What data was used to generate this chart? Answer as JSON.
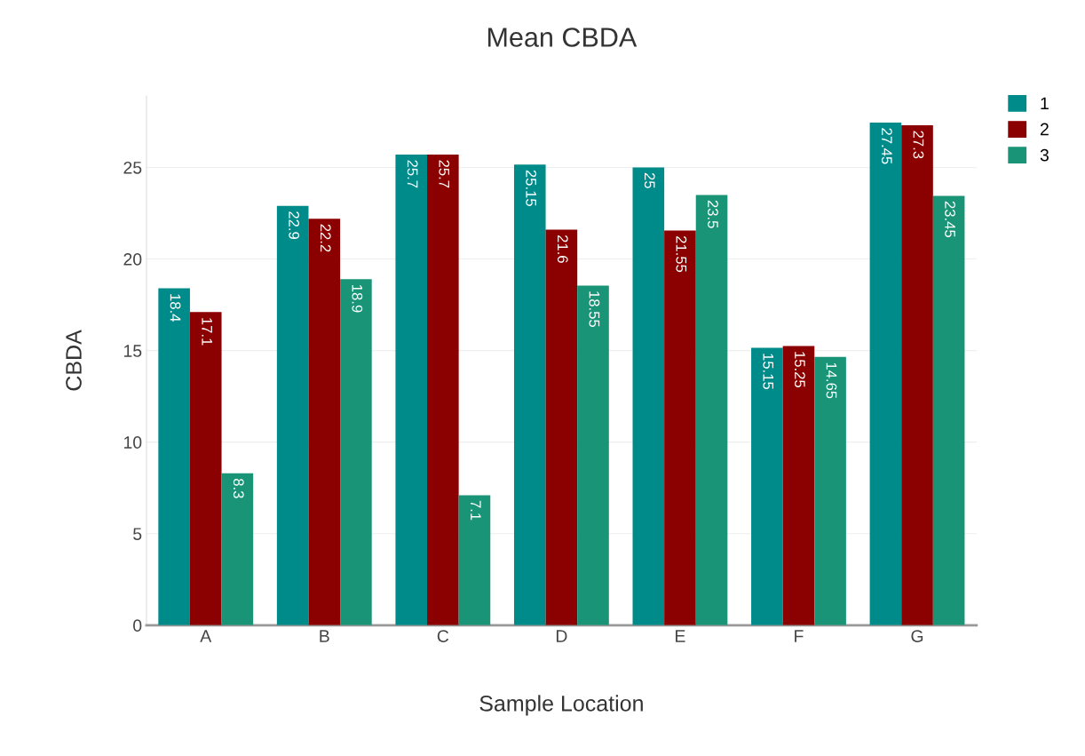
{
  "chart_data": {
    "type": "bar",
    "title": "Mean CBDA",
    "xlabel": "Sample Location",
    "ylabel": "CBDA",
    "categories": [
      "A",
      "B",
      "C",
      "D",
      "E",
      "F",
      "G"
    ],
    "series": [
      {
        "name": "1",
        "color": "#008b8b",
        "values": [
          18.4,
          22.9,
          25.7,
          25.15,
          25,
          15.15,
          27.45
        ]
      },
      {
        "name": "2",
        "color": "#8b0000",
        "values": [
          17.1,
          22.2,
          25.7,
          21.6,
          21.55,
          15.25,
          27.3
        ]
      },
      {
        "name": "3",
        "color": "#1a9477",
        "values": [
          8.3,
          18.9,
          7.1,
          18.55,
          23.5,
          14.65,
          23.45
        ]
      }
    ],
    "ylim": [
      0,
      28.9
    ],
    "yticks": [
      0,
      5,
      10,
      15,
      20,
      25
    ],
    "grid": "y",
    "legend": "top right",
    "data_labels": true
  }
}
